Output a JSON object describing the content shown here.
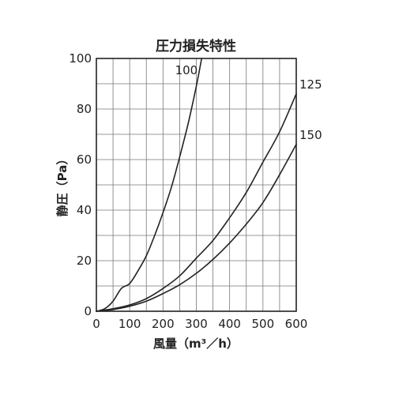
{
  "chart_data": {
    "type": "line",
    "title": "圧力損失特性",
    "xlabel": "風量（m³／h）",
    "ylabel": "静圧（Pa）",
    "xlim": [
      0,
      600
    ],
    "ylim": [
      0,
      100
    ],
    "xticks": [
      "0",
      "100",
      "200",
      "300",
      "400",
      "500",
      "600"
    ],
    "yticks": [
      "0",
      "20",
      "40",
      "60",
      "80",
      "100"
    ],
    "grid": true,
    "series": [
      {
        "name": "100",
        "x": [
          0,
          25,
          50,
          75,
          100,
          125,
          150,
          175,
          200,
          225,
          250,
          275,
          300,
          316
        ],
        "y": [
          0,
          1,
          4,
          9,
          11,
          16,
          22,
          30,
          39,
          49,
          61,
          74,
          89,
          100
        ]
      },
      {
        "name": "125",
        "x": [
          0,
          50,
          100,
          150,
          200,
          250,
          300,
          350,
          400,
          450,
          500,
          550,
          600
        ],
        "y": [
          0,
          1,
          2.5,
          5,
          9,
          14,
          21,
          28,
          37,
          47,
          59,
          71,
          86
        ]
      },
      {
        "name": "150",
        "x": [
          0,
          50,
          100,
          150,
          200,
          250,
          300,
          350,
          400,
          450,
          500,
          550,
          600
        ],
        "y": [
          0,
          0.7,
          2,
          4,
          7,
          10.5,
          15,
          20.5,
          27,
          34.5,
          43,
          54,
          66
        ]
      }
    ]
  }
}
